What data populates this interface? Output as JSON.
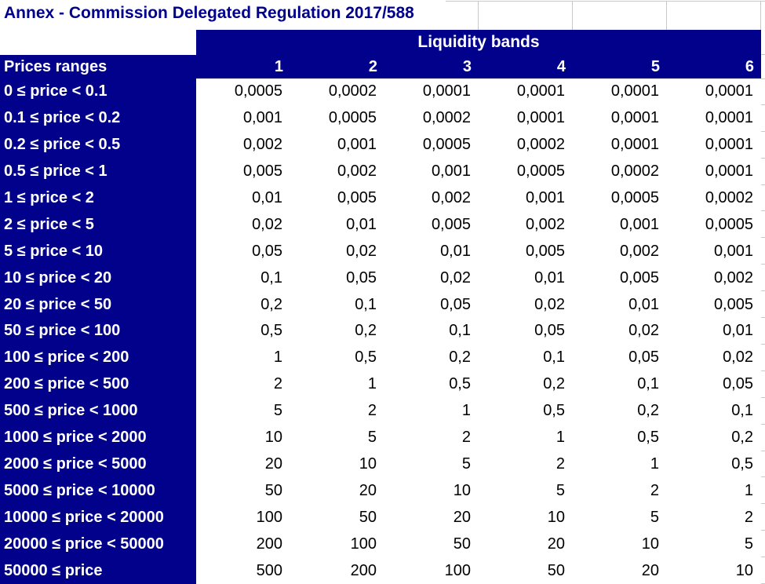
{
  "title": "Annex - Commission Delegated Regulation 2017/588",
  "table": {
    "band_header": "Liquidity bands",
    "row_header": "Prices ranges",
    "band_columns": [
      "1",
      "2",
      "3",
      "4",
      "5",
      "6"
    ],
    "rows": [
      {
        "label": "0 ≤ price < 0.1",
        "values": [
          "0,0005",
          "0,0002",
          "0,0001",
          "0,0001",
          "0,0001",
          "0,0001"
        ]
      },
      {
        "label": "0.1 ≤ price < 0.2",
        "values": [
          "0,001",
          "0,0005",
          "0,0002",
          "0,0001",
          "0,0001",
          "0,0001"
        ]
      },
      {
        "label": "0.2 ≤ price < 0.5",
        "values": [
          "0,002",
          "0,001",
          "0,0005",
          "0,0002",
          "0,0001",
          "0,0001"
        ]
      },
      {
        "label": "0.5 ≤ price < 1",
        "values": [
          "0,005",
          "0,002",
          "0,001",
          "0,0005",
          "0,0002",
          "0,0001"
        ]
      },
      {
        "label": "1 ≤ price < 2",
        "values": [
          "0,01",
          "0,005",
          "0,002",
          "0,001",
          "0,0005",
          "0,0002"
        ]
      },
      {
        "label": "2 ≤ price < 5",
        "values": [
          "0,02",
          "0,01",
          "0,005",
          "0,002",
          "0,001",
          "0,0005"
        ]
      },
      {
        "label": "5 ≤ price < 10",
        "values": [
          "0,05",
          "0,02",
          "0,01",
          "0,005",
          "0,002",
          "0,001"
        ]
      },
      {
        "label": "10 ≤ price < 20",
        "values": [
          "0,1",
          "0,05",
          "0,02",
          "0,01",
          "0,005",
          "0,002"
        ]
      },
      {
        "label": "20 ≤ price < 50",
        "values": [
          "0,2",
          "0,1",
          "0,05",
          "0,02",
          "0,01",
          "0,005"
        ]
      },
      {
        "label": "50 ≤ price < 100",
        "values": [
          "0,5",
          "0,2",
          "0,1",
          "0,05",
          "0,02",
          "0,01"
        ]
      },
      {
        "label": "100 ≤ price < 200",
        "values": [
          "1",
          "0,5",
          "0,2",
          "0,1",
          "0,05",
          "0,02"
        ]
      },
      {
        "label": "200 ≤ price < 500",
        "values": [
          "2",
          "1",
          "0,5",
          "0,2",
          "0,1",
          "0,05"
        ]
      },
      {
        "label": "500 ≤ price < 1000",
        "values": [
          "5",
          "2",
          "1",
          "0,5",
          "0,2",
          "0,1"
        ]
      },
      {
        "label": "1000 ≤ price < 2000",
        "values": [
          "10",
          "5",
          "2",
          "1",
          "0,5",
          "0,2"
        ]
      },
      {
        "label": "2000 ≤ price < 5000",
        "values": [
          "20",
          "10",
          "5",
          "2",
          "1",
          "0,5"
        ]
      },
      {
        "label": "5000 ≤ price < 10000",
        "values": [
          "50",
          "20",
          "10",
          "5",
          "2",
          "1"
        ]
      },
      {
        "label": "10000 ≤ price < 20000",
        "values": [
          "100",
          "50",
          "20",
          "10",
          "5",
          "2"
        ]
      },
      {
        "label": "20000 ≤ price < 50000",
        "values": [
          "200",
          "100",
          "50",
          "20",
          "10",
          "5"
        ]
      },
      {
        "label": "50000 ≤ price",
        "values": [
          "500",
          "200",
          "100",
          "50",
          "20",
          "10"
        ]
      }
    ]
  },
  "colors": {
    "table_blue": "#01018B",
    "title_text": "#00008B",
    "header_text": "#FFFFFF",
    "cell_text": "#000000",
    "gridline": "#C9C9C9"
  }
}
